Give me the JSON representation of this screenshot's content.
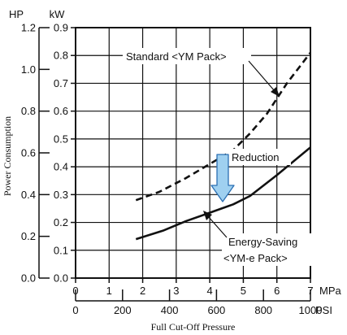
{
  "chart_data": {
    "type": "line",
    "xlabel": "Full Cut-Off Pressure",
    "ylabel": "Power Consumption",
    "x_axes": {
      "mpa": {
        "unit": "MPa",
        "range": [
          0,
          7
        ],
        "ticks": [
          "0",
          "1",
          "2",
          "3",
          "4",
          "5",
          "6",
          "7"
        ]
      },
      "psi": {
        "unit": "PSI",
        "range": [
          0,
          1000
        ],
        "ticks": [
          "0",
          "200",
          "400",
          "600",
          "800",
          "1000"
        ]
      }
    },
    "y_axes": {
      "hp": {
        "unit": "HP",
        "range": [
          0,
          1.2
        ],
        "ticks": [
          "0.0",
          "0.2",
          "0.4",
          "0.6",
          "0.8",
          "1.0",
          "1.2"
        ]
      },
      "kw": {
        "unit": "kW",
        "range": [
          0,
          0.9
        ],
        "ticks": [
          "0.0",
          "0.1",
          "0.2",
          "0.3",
          "0.4",
          "0.5",
          "0.6",
          "0.7",
          "0.8",
          "0.9"
        ]
      }
    },
    "grid": true,
    "series": [
      {
        "name": "Standard <YM Pack>",
        "style": "dashed",
        "x": [
          1.8,
          2.5,
          3.3,
          4.0,
          4.7,
          5.2,
          5.7,
          6.3,
          7.0
        ],
        "y": [
          0.28,
          0.31,
          0.36,
          0.41,
          0.46,
          0.52,
          0.59,
          0.7,
          0.81
        ]
      },
      {
        "name": "Energy-Saving <YM-e Pack>",
        "style": "solid",
        "x": [
          1.8,
          2.6,
          3.3,
          4.0,
          4.7,
          5.2,
          6.0,
          7.0
        ],
        "y": [
          0.14,
          0.17,
          0.205,
          0.235,
          0.265,
          0.295,
          0.37,
          0.47
        ]
      }
    ],
    "annotations": {
      "standard": [
        "Standard <YM Pack>"
      ],
      "reduction": [
        "Reduction"
      ],
      "energy": [
        "Energy-Saving",
        "<YM-e Pack>"
      ]
    },
    "colors": {
      "line": "#111111",
      "arrow_fill": "#9fd0f0",
      "arrow_stroke": "#2b6fb3"
    }
  }
}
